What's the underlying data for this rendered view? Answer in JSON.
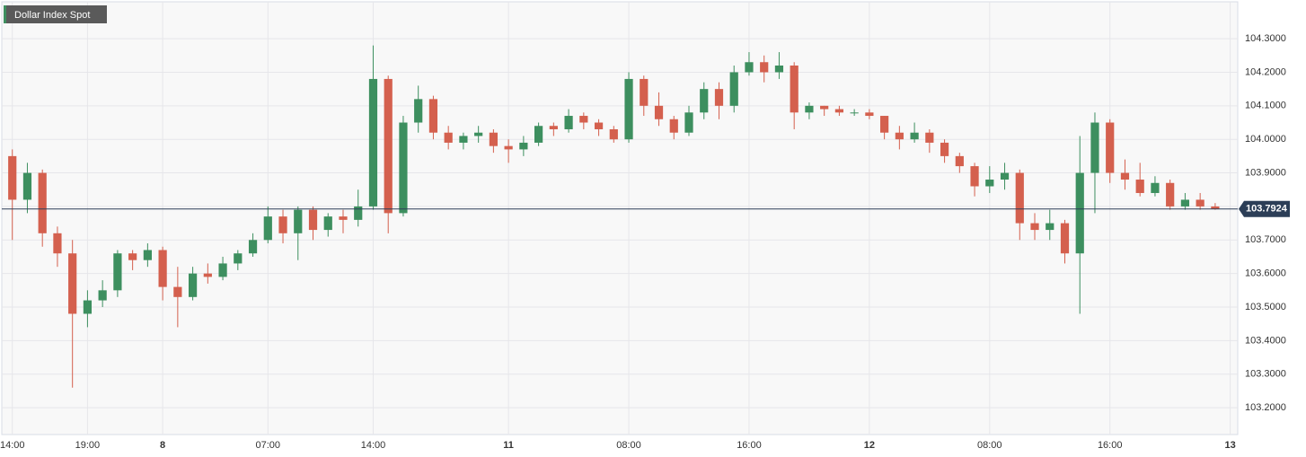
{
  "chart_data": {
    "type": "candlestick",
    "title": "Dollar Index Spot",
    "up_color": "#3d8f5f",
    "down_color": "#d4604e",
    "last_color": "#2c3e57",
    "grid": true,
    "open": [
      103.95,
      103.82,
      103.9,
      103.72,
      103.66,
      103.48,
      103.52,
      103.55,
      103.66,
      103.64,
      103.67,
      103.56,
      103.53,
      103.6,
      103.59,
      103.63,
      103.66,
      103.7,
      103.77,
      103.72,
      103.79,
      103.73,
      103.77,
      103.76,
      103.8,
      104.18,
      103.78,
      104.05,
      104.12,
      104.02,
      103.99,
      104.01,
      104.02,
      103.98,
      103.97,
      103.99,
      104.04,
      104.03,
      104.07,
      104.05,
      104.03,
      104.0,
      104.18,
      104.1,
      104.06,
      104.02,
      104.08,
      104.15,
      104.1,
      104.2,
      104.23,
      104.2,
      104.22,
      104.08,
      104.1,
      104.09,
      104.08,
      104.08,
      104.07,
      104.02,
      104.0,
      104.02,
      103.99,
      103.95,
      103.92,
      103.86,
      103.88,
      103.9,
      103.75,
      103.73,
      103.75,
      103.66,
      103.9,
      104.05,
      103.9,
      103.88,
      103.84,
      103.87,
      103.8,
      103.82,
      103.8
    ],
    "high": [
      103.97,
      103.93,
      103.91,
      103.74,
      103.7,
      103.55,
      103.58,
      103.67,
      103.67,
      103.69,
      103.68,
      103.62,
      103.62,
      103.63,
      103.65,
      103.67,
      103.72,
      103.8,
      103.79,
      103.8,
      103.8,
      103.78,
      103.79,
      103.85,
      104.28,
      104.19,
      104.07,
      104.16,
      104.13,
      104.04,
      104.02,
      104.04,
      104.03,
      104.0,
      104.01,
      104.05,
      104.05,
      104.09,
      104.08,
      104.06,
      104.04,
      104.2,
      104.19,
      104.14,
      104.07,
      104.1,
      104.17,
      104.17,
      104.22,
      104.26,
      104.25,
      104.26,
      104.23,
      104.11,
      104.1,
      104.1,
      104.09,
      104.09,
      104.07,
      104.04,
      104.05,
      104.03,
      104.0,
      103.96,
      103.93,
      103.92,
      103.93,
      103.91,
      103.78,
      103.79,
      103.76,
      104.01,
      104.08,
      104.06,
      103.94,
      103.93,
      103.89,
      103.88,
      103.84,
      103.84,
      103.81
    ],
    "low": [
      103.7,
      103.78,
      103.68,
      103.62,
      103.26,
      103.44,
      103.5,
      103.53,
      103.61,
      103.62,
      103.52,
      103.44,
      103.52,
      103.57,
      103.58,
      103.61,
      103.65,
      103.69,
      103.69,
      103.64,
      103.7,
      103.71,
      103.72,
      103.74,
      103.79,
      103.72,
      103.77,
      104.02,
      104.0,
      103.97,
      103.97,
      103.99,
      103.96,
      103.93,
      103.95,
      103.98,
      104.01,
      104.02,
      104.03,
      104.01,
      103.99,
      103.99,
      104.07,
      104.04,
      104.0,
      104.01,
      104.06,
      104.06,
      104.08,
      104.19,
      104.17,
      104.18,
      104.03,
      104.06,
      104.07,
      104.07,
      104.07,
      104.06,
      104.0,
      103.97,
      103.99,
      103.96,
      103.93,
      103.9,
      103.83,
      103.84,
      103.85,
      103.7,
      103.7,
      103.7,
      103.63,
      103.48,
      103.78,
      103.87,
      103.85,
      103.83,
      103.83,
      103.79,
      103.79,
      103.79,
      103.79
    ],
    "close": [
      103.82,
      103.9,
      103.72,
      103.66,
      103.48,
      103.52,
      103.55,
      103.66,
      103.64,
      103.67,
      103.56,
      103.53,
      103.6,
      103.59,
      103.63,
      103.66,
      103.7,
      103.77,
      103.72,
      103.79,
      103.73,
      103.77,
      103.76,
      103.8,
      104.18,
      103.78,
      104.05,
      104.12,
      104.02,
      103.99,
      104.01,
      104.02,
      103.98,
      103.97,
      103.99,
      104.04,
      104.03,
      104.07,
      104.05,
      104.03,
      104.0,
      104.18,
      104.1,
      104.06,
      104.02,
      104.08,
      104.15,
      104.1,
      104.2,
      104.23,
      104.2,
      104.22,
      104.08,
      104.1,
      104.09,
      104.08,
      104.08,
      104.07,
      104.02,
      104.0,
      104.02,
      103.99,
      103.95,
      103.92,
      103.86,
      103.88,
      103.9,
      103.75,
      103.73,
      103.75,
      103.66,
      103.9,
      104.05,
      103.9,
      103.88,
      103.84,
      103.87,
      103.8,
      103.82,
      103.8,
      103.7924
    ],
    "last_price": 103.7924,
    "xlim": [
      -0.7,
      81.5
    ],
    "xticks": [
      {
        "value": 0,
        "label": "14:00"
      },
      {
        "value": 5,
        "label": "19:00"
      },
      {
        "value": 10,
        "label": "8"
      },
      {
        "value": 17,
        "label": "07:00"
      },
      {
        "value": 24,
        "label": "14:00"
      },
      {
        "value": 33,
        "label": "11"
      },
      {
        "value": 41,
        "label": "08:00"
      },
      {
        "value": 49,
        "label": "16:00"
      },
      {
        "value": 57,
        "label": "12"
      },
      {
        "value": 65,
        "label": "08:00"
      },
      {
        "value": 73,
        "label": "16:00"
      },
      {
        "value": 81,
        "label": "13"
      }
    ],
    "ylim": [
      103.12,
      104.41
    ],
    "yticks": [
      {
        "value": 103.2,
        "label": "103.2000"
      },
      {
        "value": 103.3,
        "label": "103.3000"
      },
      {
        "value": 103.4,
        "label": "103.4000"
      },
      {
        "value": 103.5,
        "label": "103.5000"
      },
      {
        "value": 103.6,
        "label": "103.6000"
      },
      {
        "value": 103.7,
        "label": "103.7000"
      },
      {
        "value": 103.8,
        "label": "103.8000"
      },
      {
        "value": 103.9,
        "label": "103.9000"
      },
      {
        "value": 104.0,
        "label": "104.0000"
      },
      {
        "value": 104.1,
        "label": "104.1000"
      },
      {
        "value": 104.2,
        "label": "104.2000"
      },
      {
        "value": 104.3,
        "label": "104.3000"
      }
    ]
  }
}
